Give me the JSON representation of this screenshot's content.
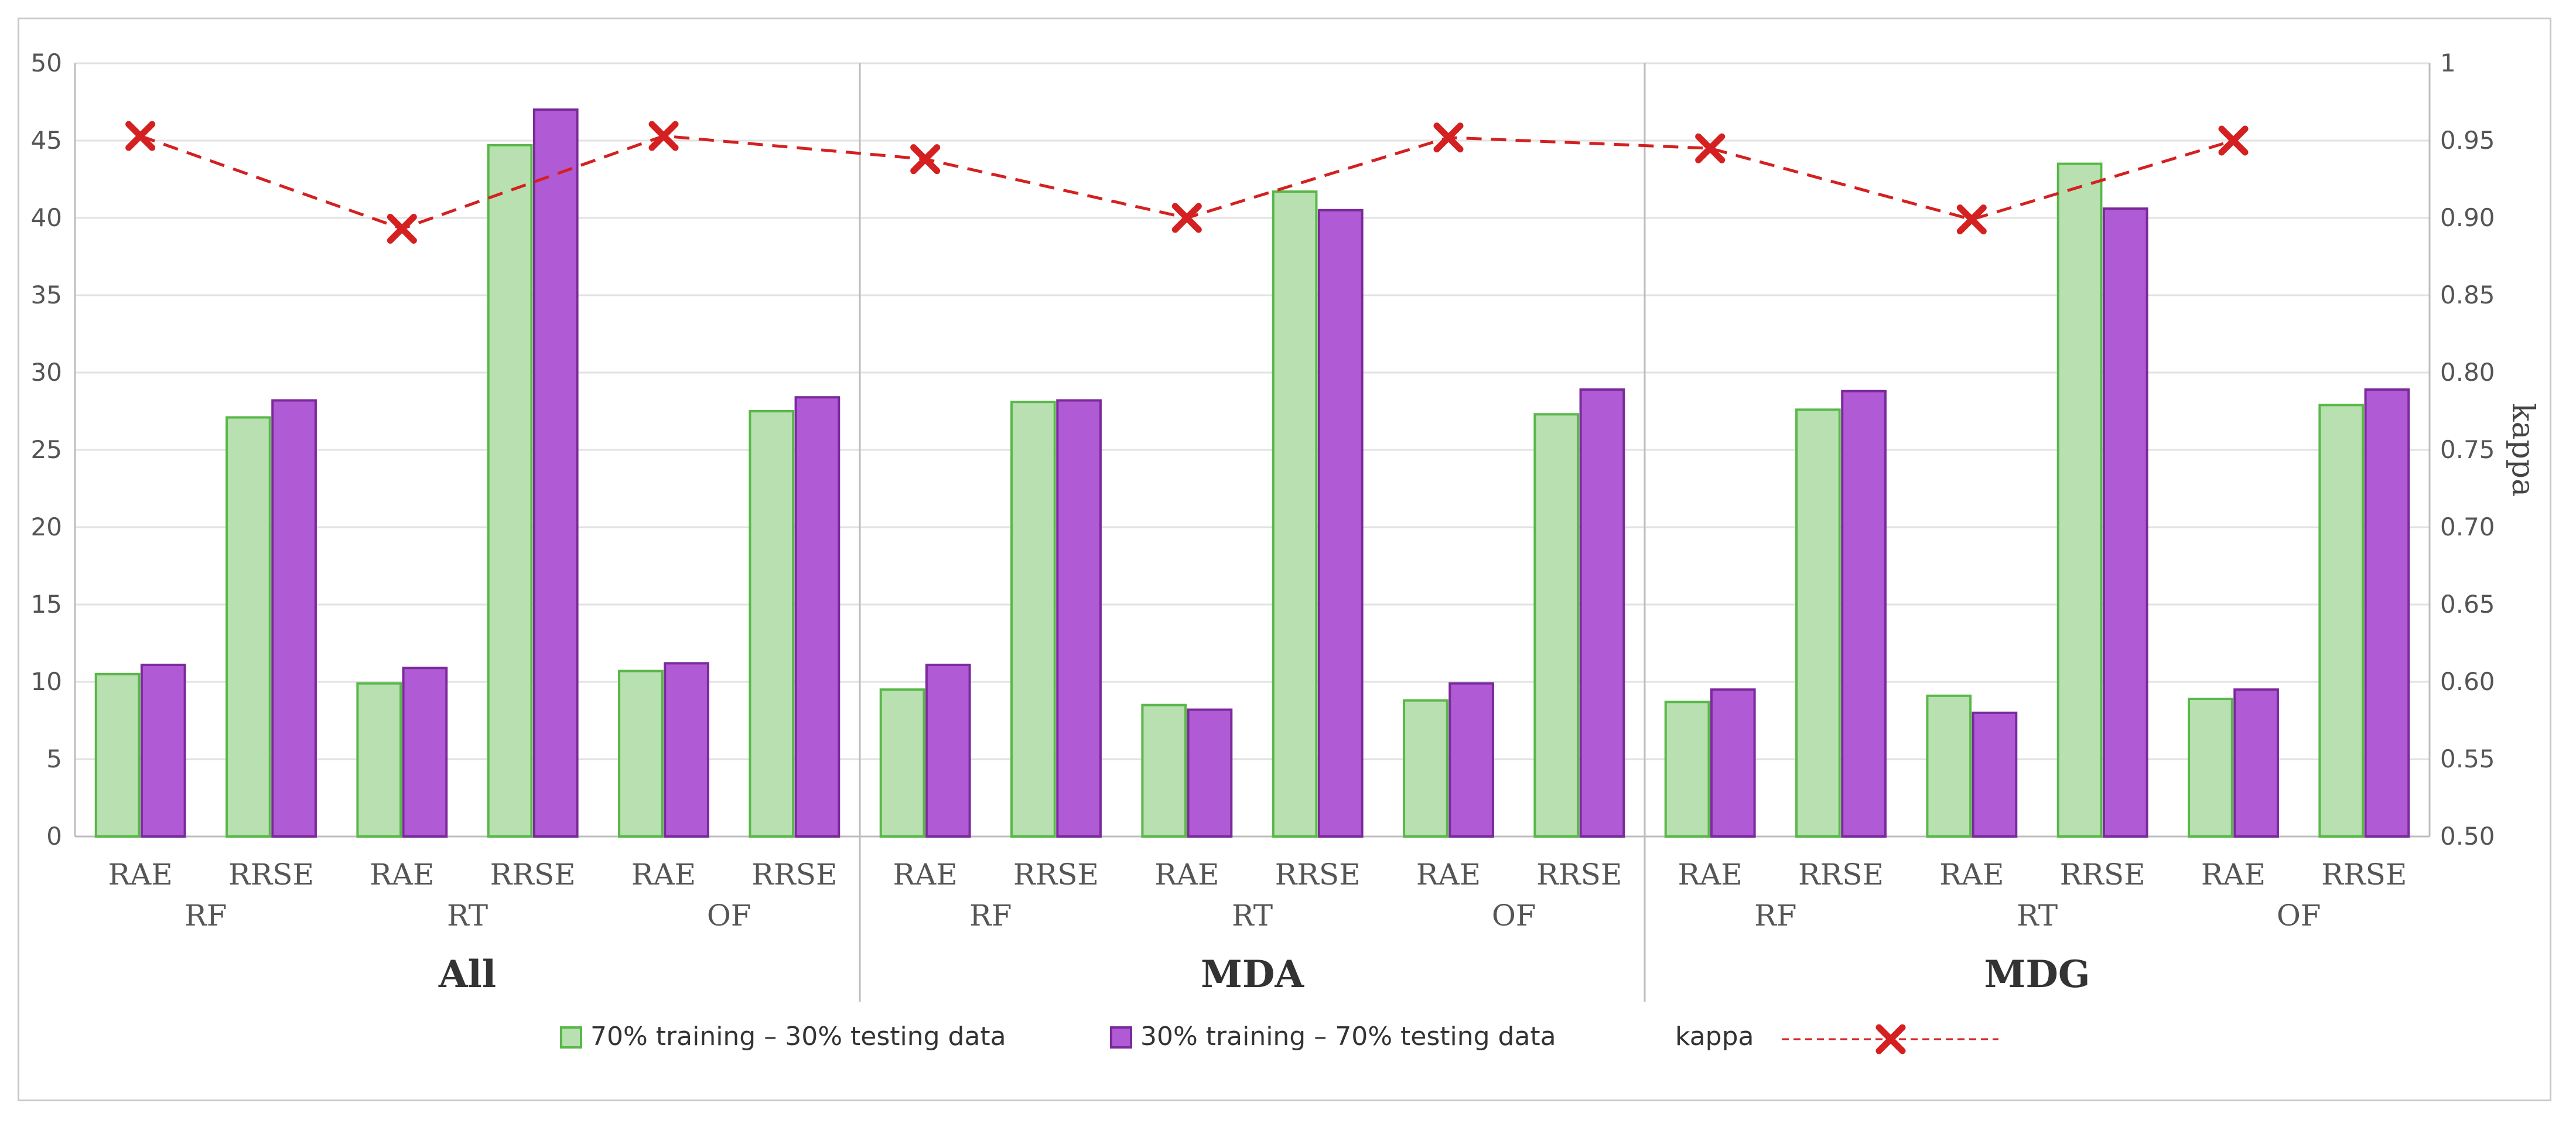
{
  "chart_data": {
    "type": "bar",
    "title": "",
    "groups": [
      "All",
      "MDA",
      "MDG"
    ],
    "models": [
      "RF",
      "RT",
      "OF"
    ],
    "metrics": [
      "RAE",
      "RRSE"
    ],
    "ylabel": "",
    "y2label": "kappa",
    "ylim": [
      0,
      50
    ],
    "y2lim": [
      0.5,
      1.0
    ],
    "y_ticks": [
      "0",
      "5",
      "10",
      "15",
      "20",
      "25",
      "30",
      "35",
      "40",
      "45",
      "50"
    ],
    "y2_ticks": [
      "0.50",
      "0.55",
      "0.60",
      "0.65",
      "0.70",
      "0.75",
      "0.80",
      "0.85",
      "0.90",
      "0.95",
      "1"
    ],
    "series": [
      {
        "name": "70% training – 30% testing data",
        "color": "#b8e0b0",
        "edge": "#58b848",
        "values": [
          10.5,
          27.1,
          9.9,
          44.7,
          10.7,
          27.5,
          9.5,
          28.1,
          8.5,
          41.7,
          8.8,
          27.3,
          8.7,
          27.6,
          9.1,
          43.5,
          8.9,
          27.9
        ]
      },
      {
        "name": "30% training – 70% testing data",
        "color": "#b05ad6",
        "edge": "#7a2a9a",
        "values": [
          11.1,
          28.2,
          10.9,
          47.0,
          11.2,
          28.4,
          11.1,
          28.2,
          8.2,
          40.5,
          9.9,
          28.9,
          9.5,
          28.8,
          8.0,
          40.6,
          9.5,
          28.9
        ]
      }
    ],
    "kappa": {
      "name": "kappa",
      "color": "#d42020",
      "values": [
        0.953,
        0.893,
        0.953,
        0.938,
        0.9,
        0.952,
        0.945,
        0.899,
        0.95
      ]
    },
    "legend_position": "bottom"
  }
}
